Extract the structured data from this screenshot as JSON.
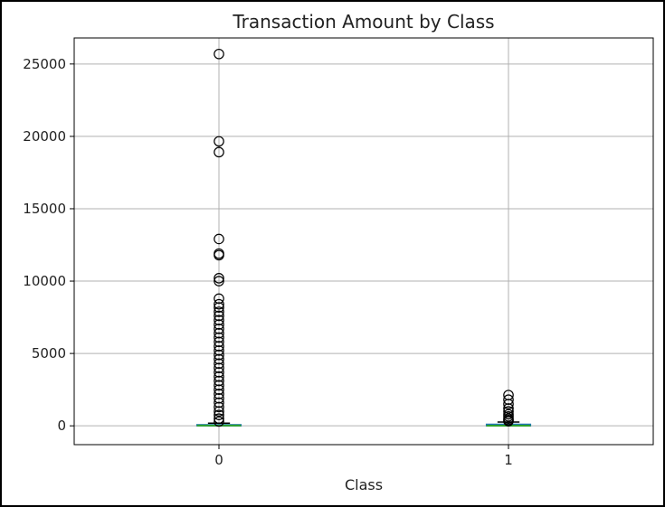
{
  "chart_data": {
    "type": "box",
    "title": "Transaction Amount by Class",
    "xlabel": "Class",
    "ylabel": "",
    "categories": [
      "0",
      "1"
    ],
    "ylim": [
      -1300,
      26800
    ],
    "yticks": [
      0,
      5000,
      10000,
      15000,
      20000,
      25000
    ],
    "grid": true,
    "colors": {
      "median": "#2ca02c",
      "box": "#1f77b4",
      "whisker": "#000000",
      "flier": "#000000",
      "grid": "#b0b0b0"
    },
    "series": [
      {
        "category": "0",
        "q1": 5.6,
        "median": 22,
        "q3": 77,
        "whisker_low": 0,
        "whisker_high": 185,
        "fliers": [
          25691,
          19656,
          18910,
          12910,
          11898,
          11790,
          10199,
          10000,
          8790,
          8400,
          8180,
          7880,
          7600,
          7300,
          7000,
          6700,
          6400,
          6100,
          5800,
          5500,
          5200,
          4900,
          4600,
          4300,
          4000,
          3700,
          3400,
          3100,
          2800,
          2500,
          2200,
          1900,
          1600,
          1300,
          1000,
          750,
          500,
          300
        ]
      },
      {
        "category": "1",
        "q1": 1,
        "median": 9.25,
        "q3": 105.9,
        "whisker_low": 0,
        "whisker_high": 262,
        "fliers": [
          2125,
          1810,
          1500,
          1200,
          1000,
          800,
          650,
          500,
          400,
          320
        ]
      }
    ]
  }
}
